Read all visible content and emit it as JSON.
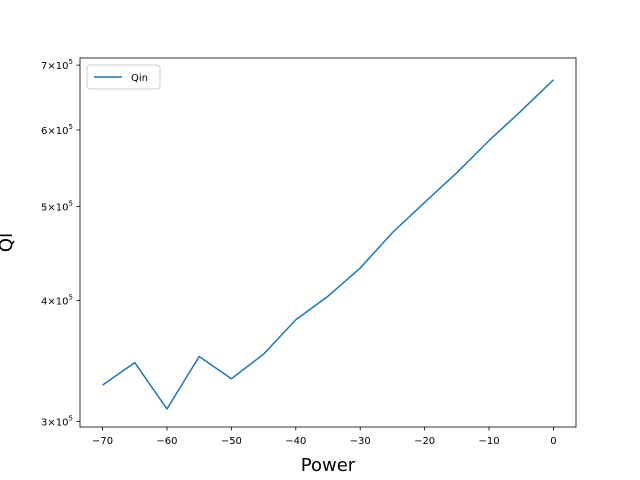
{
  "chart_data": {
    "type": "line",
    "xlabel": "Power",
    "ylabel": "Ql",
    "yscale": "log",
    "xlim": [
      -73.5,
      3.5
    ],
    "ylim": [
      296000,
      712000
    ],
    "grid": false,
    "legend": {
      "placement": "top-left"
    },
    "x_ticks": [
      {
        "value": -70,
        "label": "−70"
      },
      {
        "value": -60,
        "label": "−60"
      },
      {
        "value": -50,
        "label": "−50"
      },
      {
        "value": -40,
        "label": "−40"
      },
      {
        "value": -30,
        "label": "−30"
      },
      {
        "value": -20,
        "label": "−20"
      },
      {
        "value": -10,
        "label": "−10"
      },
      {
        "value": 0,
        "label": "0"
      }
    ],
    "y_ticks": [
      {
        "value": 300000,
        "mantissa": "3",
        "exponent": "5"
      },
      {
        "value": 400000,
        "mantissa": "4",
        "exponent": "5"
      },
      {
        "value": 500000,
        "mantissa": "5",
        "exponent": "5"
      },
      {
        "value": 600000,
        "mantissa": "6",
        "exponent": "5"
      },
      {
        "value": 700000,
        "mantissa": "7",
        "exponent": "5"
      }
    ],
    "series": [
      {
        "name": "Qin",
        "color": "#1f77b4",
        "x": [
          -70,
          -65,
          -60,
          -55,
          -50,
          -45,
          -40,
          -35,
          -30,
          -25,
          -20,
          -15,
          -10,
          -5,
          0
        ],
        "y": [
          327000,
          345000,
          309000,
          350000,
          332000,
          352000,
          382000,
          404000,
          432000,
          470000,
          505000,
          542000,
          585000,
          628000,
          676000
        ]
      }
    ]
  }
}
